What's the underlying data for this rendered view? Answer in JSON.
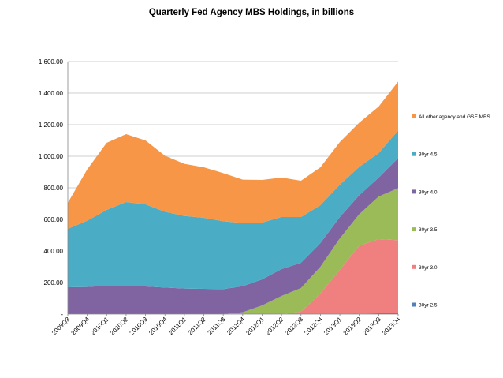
{
  "chart_data": {
    "type": "area",
    "stacked": true,
    "title": "Quarterly Fed Agency MBS Holdings, in billions",
    "xlabel": "",
    "ylabel": "",
    "ylim": [
      0,
      1600
    ],
    "yticks": [
      0,
      200,
      400,
      600,
      800,
      1000,
      1200,
      1400,
      1600
    ],
    "ytick_labels": [
      "-",
      "200.00",
      "400.00",
      "600.00",
      "800.00",
      "1,000.00",
      "1,200.00",
      "1,400.00",
      "1,600.00"
    ],
    "grid": "horizontal",
    "legend_position": "right",
    "categories": [
      "2009Q3",
      "2009Q4",
      "2010Q1",
      "2010Q2",
      "2010Q3",
      "2010Q4",
      "2011Q1",
      "2011Q2",
      "2011Q3",
      "2011Q4",
      "2012Q1",
      "2012Q2",
      "2012Q3",
      "2012Q4",
      "2013Q1",
      "2013Q2",
      "2013Q3",
      "2013Q4"
    ],
    "series": [
      {
        "name": "30yr 2.5",
        "color": "#4f81bd",
        "values": [
          0,
          0,
          0,
          0,
          0,
          0,
          0,
          0,
          0,
          0,
          0,
          0,
          0,
          0,
          0,
          3,
          5,
          8
        ]
      },
      {
        "name": "30yr 3.0",
        "color": "#f08080",
        "values": [
          0,
          0,
          0,
          0,
          0,
          0,
          0,
          0,
          0,
          0,
          0,
          0,
          15,
          130,
          280,
          430,
          470,
          460
        ]
      },
      {
        "name": "30yr 3.5",
        "color": "#9bbb59",
        "values": [
          0,
          0,
          0,
          0,
          0,
          0,
          0,
          0,
          0,
          12,
          55,
          115,
          150,
          170,
          200,
          200,
          270,
          330
        ]
      },
      {
        "name": "30yr 4.0",
        "color": "#8064a2",
        "values": [
          170,
          172,
          180,
          180,
          175,
          168,
          162,
          160,
          158,
          165,
          165,
          170,
          160,
          150,
          135,
          120,
          120,
          190
        ]
      },
      {
        "name": "30yr 4.5",
        "color": "#4bacc6",
        "values": [
          370,
          420,
          480,
          530,
          520,
          480,
          460,
          450,
          430,
          400,
          360,
          330,
          290,
          240,
          205,
          180,
          155,
          175
        ]
      },
      {
        "name": "All other agency and GSE MBS",
        "color": "#f79646",
        "values": [
          165,
          325,
          425,
          430,
          405,
          355,
          330,
          320,
          305,
          275,
          270,
          250,
          230,
          240,
          270,
          280,
          295,
          310
        ]
      }
    ]
  }
}
